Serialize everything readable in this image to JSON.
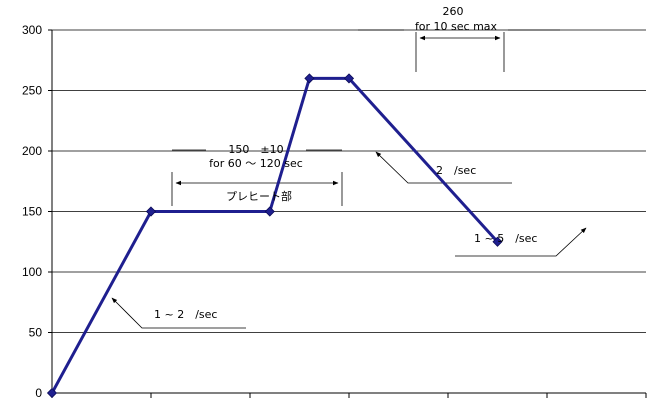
{
  "chart_data": {
    "type": "line",
    "x": [
      0,
      1,
      2.2,
      2.6,
      3,
      4.5
    ],
    "series": [
      {
        "values": [
          0,
          150,
          150,
          260,
          260,
          125
        ],
        "color": "#1f1f8f",
        "marker": "diamond"
      }
    ],
    "ylim": [
      0,
      300
    ],
    "yticks": [
      "0",
      "50",
      "100",
      "150",
      "200",
      "250",
      "300"
    ],
    "grid": true,
    "annotations": {
      "peak_temp": "260",
      "peak_time": "for 10 sec max",
      "preheat_temp": "150　±10",
      "preheat_time": "for 60 ～ 120 sec",
      "preheat_label": "プレヒート部",
      "ramp_up_rate": "1 ~ 2　/sec",
      "ramp_mid_rate": "2　/sec",
      "ramp_down_rate": "1 ~ 5　/sec"
    }
  }
}
